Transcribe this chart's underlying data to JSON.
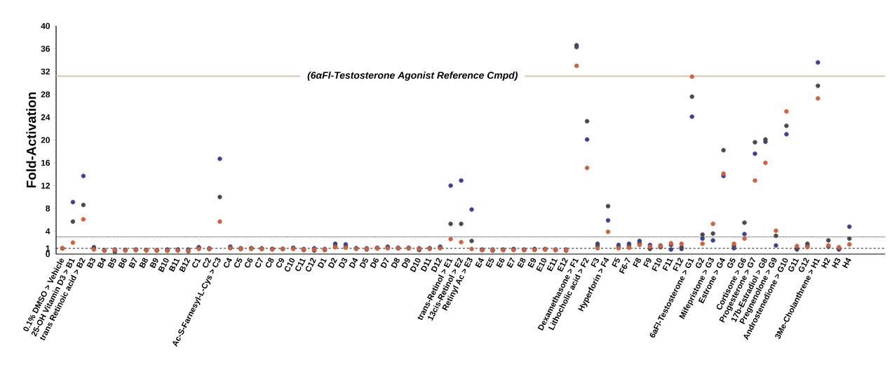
{
  "chart_data": {
    "type": "scatter",
    "ylabel": "Fold-Activation",
    "categories": [
      "0.1% DMSO > Vehicle",
      "25-OH Vitamin D3 > B1",
      "trans Retinoic acid > B2",
      "B3",
      "B4",
      "B5",
      "B6",
      "B7",
      "B8",
      "B9",
      "B10",
      "B11",
      "B12",
      "C1",
      "C2",
      "Ac-S-Farnesyl-L-Cys > C3",
      "C4",
      "C5",
      "C6",
      "C7",
      "C8",
      "C9",
      "C10",
      "C11",
      "C12",
      "D1",
      "D2",
      "D3",
      "D4",
      "D5",
      "D6",
      "D7",
      "D8",
      "D9",
      "D10",
      "D11",
      "D12",
      "trans-Retinol > E1",
      "13cis-Retinol > E2",
      "Retinyl Ac > E3",
      "E4",
      "E5",
      "E6",
      "E7",
      "E8",
      "E9",
      "E10",
      "E11",
      "E12",
      "Dexamethasone > F1",
      "Lithocholic acid > F2",
      "F3",
      "Hyperforin > F4",
      "F5",
      "F6-7",
      "F8",
      "F9",
      "F10",
      "F11",
      "F12",
      "6aFl-Testosterone > G1",
      "G2",
      "Mifepristone > G3",
      "Estrone > G4",
      "G5",
      "Cortisone > G6",
      "Progesterone > G7",
      "17b-Estradiol > G8",
      "Pregnenolone > G9",
      "Androstenedione > G10",
      "G11",
      "G12",
      "3Me-Cholanthrene > H1",
      "H2",
      "H3",
      "H4"
    ],
    "series": [
      {
        "color": "#3d3f9e",
        "values": [
          1.0,
          9.1,
          13.7,
          1.2,
          0.7,
          0.8,
          0.7,
          0.8,
          0.7,
          0.7,
          0.8,
          0.8,
          0.8,
          1.2,
          1.0,
          16.7,
          1.3,
          1.0,
          1.0,
          1.0,
          0.9,
          0.9,
          1.1,
          0.9,
          1.0,
          0.9,
          1.8,
          1.7,
          1.0,
          1.0,
          1.1,
          1.3,
          1.1,
          1.1,
          1.0,
          1.0,
          1.3,
          12.0,
          12.9,
          7.8,
          0.8,
          0.8,
          0.8,
          0.9,
          0.8,
          0.9,
          0.9,
          0.8,
          0.8,
          36.3,
          20.1,
          1.8,
          5.9,
          1.6,
          1.8,
          2.3,
          1.6,
          1.5,
          0.8,
          0.9,
          24.1,
          2.7,
          2.4,
          13.7,
          1.0,
          3.5,
          17.6,
          19.7,
          1.5,
          21.0,
          0.8,
          1.4,
          33.6,
          1.3,
          0.8,
          4.8
        ]
      },
      {
        "color": "#4a4a4a",
        "values": [
          1.0,
          5.7,
          8.6,
          1.0,
          0.6,
          0.4,
          0.7,
          0.7,
          0.7,
          0.6,
          0.6,
          0.7,
          0.5,
          1.1,
          0.9,
          10.0,
          1.1,
          0.9,
          1.0,
          0.9,
          0.9,
          0.9,
          1.0,
          0.7,
          0.6,
          0.7,
          1.4,
          1.3,
          1.0,
          0.8,
          1.0,
          1.1,
          1.0,
          1.0,
          0.7,
          1.0,
          1.1,
          5.3,
          5.3,
          2.3,
          0.7,
          0.6,
          0.7,
          0.8,
          0.7,
          0.8,
          0.8,
          0.7,
          0.6,
          36.6,
          23.3,
          1.4,
          8.4,
          1.2,
          1.4,
          1.9,
          0.9,
          1.2,
          1.6,
          1.2,
          27.6,
          3.4,
          3.6,
          18.2,
          1.4,
          5.5,
          19.6,
          20.1,
          3.2,
          22.5,
          1.0,
          1.8,
          29.5,
          2.4,
          1.0,
          2.7
        ]
      },
      {
        "color": "#d2603a",
        "values": [
          1.0,
          2.0,
          6.1,
          0.8,
          0.6,
          0.7,
          0.6,
          0.7,
          0.6,
          0.7,
          0.6,
          0.6,
          0.6,
          0.9,
          0.9,
          5.7,
          1.0,
          0.9,
          0.9,
          0.9,
          0.8,
          0.9,
          0.9,
          0.8,
          0.8,
          0.8,
          1.2,
          1.1,
          0.9,
          0.9,
          1.0,
          1.0,
          1.0,
          1.0,
          0.9,
          0.9,
          1.0,
          2.6,
          2.1,
          0.9,
          0.7,
          0.7,
          0.7,
          0.7,
          0.7,
          0.7,
          0.8,
          0.7,
          0.7,
          33.0,
          15.1,
          1.0,
          3.9,
          1.0,
          1.1,
          1.6,
          1.3,
          1.4,
          1.9,
          1.8,
          31.1,
          1.8,
          5.3,
          14.1,
          1.8,
          2.7,
          12.9,
          16.0,
          4.1,
          25.0,
          1.4,
          1.2,
          27.3,
          1.5,
          1.2,
          1.7
        ]
      }
    ],
    "ylim": [
      0,
      40
    ],
    "yticks": [
      0,
      1,
      4,
      8,
      12,
      16,
      20,
      24,
      28,
      32,
      36,
      40
    ],
    "ref_lines": [
      {
        "axis": "y",
        "value": 31.2,
        "label": "(6αFl-Testosterone Agonist Reference Cmpd)",
        "color": "#e3c2a6",
        "line_style": "solid"
      },
      {
        "axis": "y",
        "value": 3,
        "color": "#000000",
        "line_style": "dotted"
      },
      {
        "axis": "y",
        "value": 1,
        "color": "#000000",
        "line_style": "dashed"
      }
    ]
  }
}
